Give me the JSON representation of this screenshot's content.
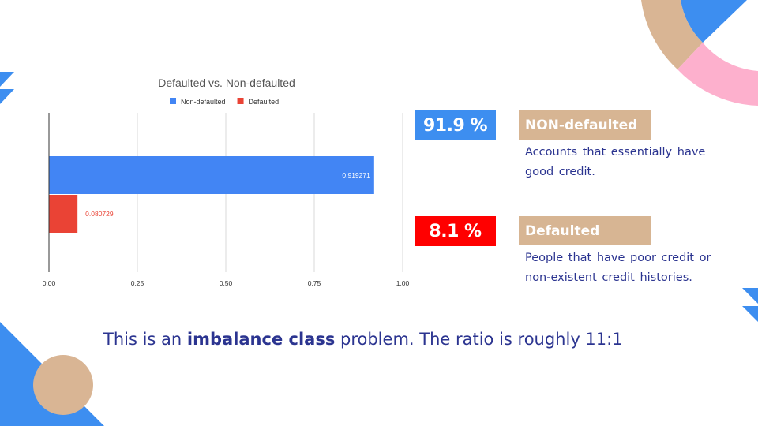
{
  "colors": {
    "non_defaulted": "#4285f4",
    "defaulted": "#ea4335",
    "pct_non_defaulted_bg": "#3d8ef0",
    "pct_defaulted_bg": "#ff0000",
    "label_bg": "#d7b593",
    "text_navy": "#2b3490",
    "deco_blue": "#3d8ef0",
    "deco_tan": "#d9b594",
    "deco_pink": "#fdb0cd"
  },
  "chart_data": {
    "type": "bar",
    "orientation": "horizontal",
    "title": "Defaulted vs. Non-defaulted",
    "series": [
      {
        "name": "Non-defaulted",
        "values": [
          0.919271
        ],
        "color": "#4285f4"
      },
      {
        "name": "Defaulted",
        "values": [
          0.080729
        ],
        "color": "#ea4335"
      }
    ],
    "data_labels": [
      "0.919271",
      "0.080729"
    ],
    "xlim": [
      0,
      1
    ],
    "x_ticks": [
      "0.00",
      "0.25",
      "0.50",
      "0.75",
      "1.00"
    ],
    "grid": true,
    "legend_position": "top"
  },
  "stats": [
    {
      "percent": "91.9 %",
      "label": "NON-defaulted",
      "description_lines": [
        "Accounts that essentially have",
        "good credit."
      ]
    },
    {
      "percent": "8.1 %",
      "label": "Defaulted",
      "description_lines": [
        "People that have poor credit or",
        "non-existent credit histories."
      ]
    }
  ],
  "conclusion": {
    "part1": "This is an ",
    "bold": "imbalance class",
    "part2": " problem. The ratio is roughly 11:1"
  }
}
